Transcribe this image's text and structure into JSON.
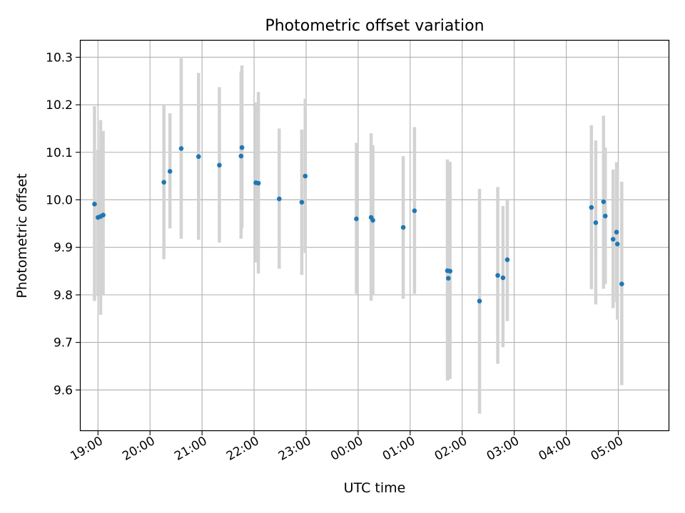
{
  "chart_data": {
    "type": "scatter",
    "title": "Photometric offset variation",
    "xlabel": "UTC time",
    "ylabel": "Photometric offset",
    "xlim": [
      "18:40",
      "05:58"
    ],
    "ylim": [
      9.515,
      10.335
    ],
    "x_ticks": [
      "19:00",
      "20:00",
      "21:00",
      "22:00",
      "23:00",
      "00:00",
      "01:00",
      "02:00",
      "03:00",
      "04:00",
      "05:00"
    ],
    "y_ticks": [
      "9.6",
      "9.7",
      "9.8",
      "9.9",
      "10.0",
      "10.1",
      "10.2",
      "10.3"
    ],
    "grid": true,
    "marker_color": "#1f77b4",
    "errorbar_color": "#d3d3d3",
    "series": [
      {
        "points": [
          {
            "t": "18:56",
            "y": 9.991,
            "lo": 9.787,
            "hi": 10.197
          },
          {
            "t": "19:00",
            "y": 9.963,
            "lo": 9.8,
            "hi": 10.105
          },
          {
            "t": "19:03",
            "y": 9.965,
            "lo": 9.758,
            "hi": 10.168
          },
          {
            "t": "19:06",
            "y": 9.968,
            "lo": 9.8,
            "hi": 10.145
          },
          {
            "t": "20:16",
            "y": 10.037,
            "lo": 9.875,
            "hi": 10.2
          },
          {
            "t": "20:23",
            "y": 10.06,
            "lo": 9.94,
            "hi": 10.182
          },
          {
            "t": "20:36",
            "y": 10.108,
            "lo": 9.918,
            "hi": 10.298
          },
          {
            "t": "20:56",
            "y": 10.091,
            "lo": 9.916,
            "hi": 10.267
          },
          {
            "t": "21:20",
            "y": 10.073,
            "lo": 9.91,
            "hi": 10.237
          },
          {
            "t": "21:45",
            "y": 10.092,
            "lo": 9.918,
            "hi": 10.27
          },
          {
            "t": "21:46",
            "y": 10.11,
            "lo": 9.94,
            "hi": 10.283
          },
          {
            "t": "22:02",
            "y": 10.036,
            "lo": 9.868,
            "hi": 10.205
          },
          {
            "t": "22:05",
            "y": 10.035,
            "lo": 9.845,
            "hi": 10.227
          },
          {
            "t": "22:29",
            "y": 10.002,
            "lo": 9.855,
            "hi": 10.15
          },
          {
            "t": "22:55",
            "y": 9.995,
            "lo": 9.842,
            "hi": 10.148
          },
          {
            "t": "22:59",
            "y": 10.05,
            "lo": 9.888,
            "hi": 10.213
          },
          {
            "t": "23:58",
            "y": 9.96,
            "lo": 9.802,
            "hi": 10.12
          },
          {
            "t": "00:15",
            "y": 9.963,
            "lo": 9.788,
            "hi": 10.14
          },
          {
            "t": "00:17",
            "y": 9.957,
            "lo": 9.8,
            "hi": 10.115
          },
          {
            "t": "00:52",
            "y": 9.942,
            "lo": 9.792,
            "hi": 10.092
          },
          {
            "t": "01:05",
            "y": 9.977,
            "lo": 9.802,
            "hi": 10.153
          },
          {
            "t": "01:43",
            "y": 9.851,
            "lo": 9.62,
            "hi": 10.085
          },
          {
            "t": "01:44",
            "y": 9.835,
            "lo": 9.622,
            "hi": 10.079
          },
          {
            "t": "01:46",
            "y": 9.85,
            "lo": 9.623,
            "hi": 10.08
          },
          {
            "t": "02:20",
            "y": 9.787,
            "lo": 9.55,
            "hi": 10.023
          },
          {
            "t": "02:41",
            "y": 9.841,
            "lo": 9.655,
            "hi": 10.027
          },
          {
            "t": "02:47",
            "y": 9.836,
            "lo": 9.69,
            "hi": 9.987
          },
          {
            "t": "02:52",
            "y": 9.874,
            "lo": 9.745,
            "hi": 10.002
          },
          {
            "t": "04:29",
            "y": 9.984,
            "lo": 9.812,
            "hi": 10.157
          },
          {
            "t": "04:34",
            "y": 9.952,
            "lo": 9.78,
            "hi": 10.125
          },
          {
            "t": "04:43",
            "y": 9.996,
            "lo": 9.813,
            "hi": 10.177
          },
          {
            "t": "04:45",
            "y": 9.966,
            "lo": 9.823,
            "hi": 10.11
          },
          {
            "t": "04:54",
            "y": 9.917,
            "lo": 9.772,
            "hi": 10.064
          },
          {
            "t": "04:58",
            "y": 9.932,
            "lo": 9.785,
            "hi": 10.079
          },
          {
            "t": "04:59",
            "y": 9.907,
            "lo": 9.748,
            "hi": 10.066
          },
          {
            "t": "05:04",
            "y": 9.823,
            "lo": 9.61,
            "hi": 10.038
          }
        ]
      }
    ]
  }
}
